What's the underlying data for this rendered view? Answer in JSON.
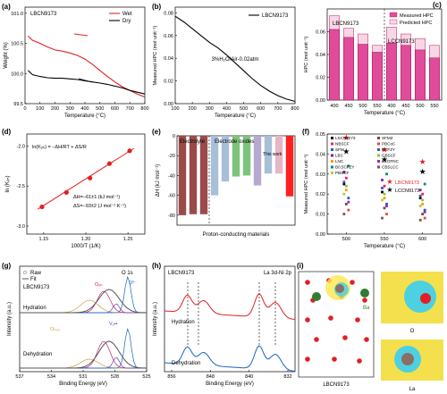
{
  "panels": {
    "a": {
      "label": "(a)",
      "series_text": "LBCN9173",
      "legend": [
        "Wet",
        "Dry"
      ],
      "xlabel": "Temperature (°C)",
      "ylabel": "Weight (%)",
      "xticks": [
        "0",
        "100",
        "200",
        "300",
        "400",
        "500",
        "600",
        "700",
        "800"
      ],
      "yticks": [
        "99.5",
        "100.0",
        "100.5",
        "101.0"
      ]
    },
    "b": {
      "label": "(b)",
      "legend": [
        "LBCN9173"
      ],
      "condition": "3%H₂O/Air-0.02atm",
      "xlabel": "Temperature (°C)",
      "ylabel": "Measured HPC (mol unit⁻¹)",
      "xticks": [
        "100",
        "200",
        "300",
        "400",
        "500",
        "600",
        "700",
        "800"
      ],
      "yticks": [
        "0.00",
        "0.02",
        "0.04",
        "0.06",
        "0.08"
      ]
    },
    "c": {
      "label": "(c)",
      "legend": [
        "Measured HPC",
        "Predicted HPC"
      ],
      "group1": "LBCN9173",
      "group2": "LCCN9173",
      "xlabel": "Temperature (°C)",
      "ylabel": "HPC (mol unit⁻¹)",
      "xticks": [
        "400",
        "450",
        "500",
        "550",
        "400",
        "450",
        "500",
        "550"
      ],
      "yticks": [
        "0.00",
        "0.02",
        "0.04",
        "0.06"
      ]
    },
    "d": {
      "label": "(d)",
      "equation": "ln(Kₒₕ) = −ΔH/RT + ΔS/R",
      "dh": "ΔH=−61±1 (kJ mol⁻¹)",
      "ds": "ΔS=−93±2 (J mol⁻¹ K⁻¹)",
      "xlabel": "1000/T (1/K)",
      "ylabel": "ln (Kₒₕ)",
      "xticks": [
        "1.15",
        "1.20",
        "1.25"
      ],
      "yticks": [
        "-2.0",
        "-2.5",
        "-3.0"
      ]
    },
    "e": {
      "label": "(e)",
      "group1": "Electrolyte",
      "group2": "Electrode oxides",
      "note": "This work",
      "xlabel": "Proton-conducting materials",
      "ylabel": "ΔH (kJ mol⁻¹)",
      "yticks": [
        "0",
        "-20",
        "-40",
        "-60",
        "-80"
      ]
    },
    "f": {
      "label": "(f)",
      "xlabel": "Temperature (°C)",
      "ylabel": "Measured HPC (mol unit⁻¹)",
      "xticks": [
        "500",
        "550",
        "600"
      ],
      "yticks": [
        "0.00",
        "0.01",
        "0.02",
        "0.03",
        "0.04",
        "0.05"
      ],
      "legend": [
        "LSCN8273",
        "NBSCF",
        "SFM",
        "LBC",
        "LNC",
        "B0.5CFZY",
        "PBSCF",
        "SFMZ",
        "PBCoC",
        "BCFZY",
        "GBSCF",
        "LCOFNC",
        "CBSLCC"
      ],
      "highlight": [
        "LBCN9173",
        "LCCN9173"
      ]
    },
    "g": {
      "label": "(g)",
      "legend": [
        "Raw",
        "Fit"
      ],
      "peak": "O 1s",
      "sample": "LBCN9173",
      "state1": "Hydration",
      "state2": "Dehydration",
      "c1": "Oₒₕ",
      "c2": "O²⁻",
      "c3": "Oₕ₂ₒ",
      "c4": "Vₒ••",
      "xlabel": "Binding Energy (eV)",
      "ylabel": "Intensity (a.u.)",
      "xticks": [
        "537",
        "534",
        "531",
        "528",
        "525"
      ]
    },
    "h": {
      "label": "(h)",
      "sample": "LBCN9173",
      "peak": "La 3d-Ni 2p",
      "state1": "Hydration",
      "state2": "Dehydration",
      "xlabel": "Binding Energy (eV)",
      "ylabel": "Intensity (a.u.)",
      "xticks": [
        "856",
        "848",
        "840",
        "832"
      ]
    },
    "i": {
      "label": "(i)",
      "caption1": "LBCN9173",
      "caption2": "O",
      "caption3": "La",
      "atom_label": "Ba"
    }
  },
  "chart_data": [
    {
      "panel": "a",
      "type": "line",
      "series": [
        {
          "name": "Wet",
          "color": "#e02020",
          "x": [
            20,
            50,
            100,
            150,
            200,
            250,
            300,
            350,
            400,
            450,
            500,
            550,
            600,
            650,
            700,
            750,
            800
          ],
          "values": [
            100.62,
            100.55,
            100.5,
            100.44,
            100.39,
            100.37,
            100.34,
            100.3,
            100.24,
            100.15,
            100.05,
            99.95,
            99.86,
            99.78,
            99.72,
            99.66,
            99.61
          ]
        },
        {
          "name": "Dry",
          "color": "#000000",
          "x": [
            20,
            50,
            100,
            150,
            200,
            250,
            300,
            350,
            400,
            450,
            500,
            550,
            600,
            650,
            700,
            750,
            800
          ],
          "values": [
            100.05,
            99.98,
            99.95,
            99.93,
            99.92,
            99.92,
            99.91,
            99.9,
            99.88,
            99.86,
            99.84,
            99.82,
            99.79,
            99.76,
            99.72,
            99.69,
            99.66
          ]
        }
      ],
      "xlim": [
        0,
        800
      ],
      "ylim": [
        99.5,
        101.1
      ]
    },
    {
      "panel": "b",
      "type": "line",
      "series": [
        {
          "name": "LBCN9173",
          "x": [
            100,
            150,
            200,
            250,
            300,
            350,
            400,
            450,
            500,
            550,
            600,
            650,
            700,
            750,
            800
          ],
          "values": [
            0.077,
            0.072,
            0.066,
            0.06,
            0.054,
            0.049,
            0.043,
            0.036,
            0.029,
            0.022,
            0.016,
            0.011,
            0.007,
            0.004,
            0.002
          ]
        }
      ],
      "xlim": [
        100,
        800
      ],
      "ylim": [
        0,
        0.085
      ]
    },
    {
      "panel": "c",
      "type": "bar",
      "categories": [
        "400",
        "450",
        "500",
        "550",
        "400",
        "450",
        "500",
        "550"
      ],
      "series": [
        {
          "name": "Measured HPC",
          "values": [
            0.062,
            0.055,
            0.049,
            0.042,
            0.05,
            0.048,
            0.044,
            0.037
          ]
        },
        {
          "name": "Predicted HPC",
          "values": [
            0.074,
            0.063,
            0.058,
            0.048,
            0.064,
            0.058,
            0.054,
            0.048
          ]
        }
      ],
      "ylim": [
        0,
        0.08
      ]
    },
    {
      "panel": "d",
      "type": "scatter",
      "x": [
        1.148,
        1.177,
        1.205,
        1.228,
        1.252
      ],
      "values": [
        -2.76,
        -2.58,
        -2.4,
        -2.22,
        -2.06
      ],
      "xlim": [
        1.13,
        1.27
      ],
      "ylim": [
        -3.1,
        -1.85
      ]
    },
    {
      "panel": "e",
      "type": "bar",
      "categories": [
        "BZCE82",
        "BZCE82",
        "BZCE82",
        "LSY1",
        "BCFY5",
        "SCY91",
        "SCY91",
        "BSCFYb",
        "LBaY91",
        "PBSCF",
        "LBCN9173"
      ],
      "values": [
        -80,
        -79,
        -79,
        -60,
        -46,
        -41,
        -40,
        -50,
        -38,
        -38,
        -61
      ],
      "colors": [
        "#9b4a4a",
        "#9b4a4a",
        "#9b4a4a",
        "#a8bfd8",
        "#a8bfd8",
        "#7cc47c",
        "#7cc47c",
        "#b6a8d0",
        "#a8bfd8",
        "#e8b4c8",
        "#ff2020"
      ],
      "ylim": [
        -90,
        0
      ]
    },
    {
      "panel": "f",
      "type": "scatter",
      "xlim": [
        475,
        625
      ],
      "ylim": [
        0,
        0.05
      ],
      "series": [
        {
          "name": "LSCN8273",
          "points": [
            [
              500,
              0.025
            ],
            [
              550,
              0.021
            ],
            [
              600,
              0.018
            ]
          ]
        },
        {
          "name": "NBSCF",
          "points": [
            [
              500,
              0.028
            ],
            [
              550,
              0.024
            ],
            [
              600,
              0.02
            ]
          ]
        },
        {
          "name": "SFM",
          "points": [
            [
              500,
              0.018
            ],
            [
              550,
              0.015
            ],
            [
              600,
              0.012
            ]
          ]
        },
        {
          "name": "LBC",
          "points": [
            [
              500,
              0.031
            ],
            [
              550,
              0.027
            ],
            [
              600,
              0.022
            ]
          ]
        },
        {
          "name": "LNC",
          "points": [
            [
              500,
              0.022
            ],
            [
              550,
              0.018
            ],
            [
              600,
              0.015
            ]
          ]
        },
        {
          "name": "B0.5CFZY",
          "points": [
            [
              500,
              0.034
            ],
            [
              550,
              0.03
            ],
            [
              600,
              0.025
            ]
          ]
        },
        {
          "name": "PBSCF",
          "points": [
            [
              500,
              0.02
            ],
            [
              550,
              0.017
            ],
            [
              600,
              0.014
            ]
          ]
        },
        {
          "name": "SFMZ",
          "points": [
            [
              500,
              0.015
            ],
            [
              550,
              0.013
            ],
            [
              600,
              0.01
            ]
          ]
        },
        {
          "name": "PBCoC",
          "points": [
            [
              500,
              0.012
            ],
            [
              550,
              0.01
            ],
            [
              600,
              0.008
            ]
          ]
        },
        {
          "name": "BCFZY",
          "points": [
            [
              500,
              0.026
            ],
            [
              550,
              0.023
            ],
            [
              600,
              0.019
            ]
          ]
        },
        {
          "name": "GBSCF",
          "points": [
            [
              500,
              0.024
            ],
            [
              550,
              0.02
            ],
            [
              600,
              0.017
            ]
          ]
        },
        {
          "name": "LCOFNC",
          "points": [
            [
              500,
              0.016
            ],
            [
              550,
              0.014
            ],
            [
              600,
              0.011
            ]
          ]
        },
        {
          "name": "CBSLCC",
          "points": [
            [
              500,
              0.01
            ],
            [
              550,
              0.008
            ],
            [
              600,
              0.007
            ]
          ]
        },
        {
          "name": "LBCN9173",
          "points": [
            [
              500,
              0.048
            ],
            [
              550,
              0.042
            ],
            [
              600,
              0.036
            ]
          ]
        },
        {
          "name": "LCCN9173",
          "points": [
            [
              500,
              0.041
            ],
            [
              550,
              0.037
            ],
            [
              600,
              0.031
            ]
          ]
        }
      ]
    }
  ]
}
